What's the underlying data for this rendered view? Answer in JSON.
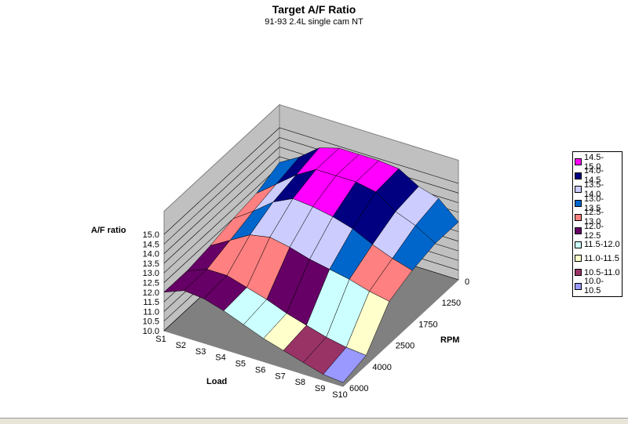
{
  "chart_data": {
    "type": "surface",
    "title": "Target A/F Ratio",
    "subtitle": "91-93 2.4L single cam NT",
    "zlabel": "A/F ratio",
    "xlabel": "Load",
    "ylabel": "RPM",
    "zlim": [
      10.0,
      15.0
    ],
    "z_ticks": [
      "10.0",
      "10.5",
      "11.0",
      "11.5",
      "12.0",
      "12.5",
      "13.0",
      "13.5",
      "14.0",
      "14.5",
      "15.0"
    ],
    "load_categories": [
      "S1",
      "S2",
      "S3",
      "S4",
      "S5",
      "S6",
      "S7",
      "S8",
      "S9",
      "S10"
    ],
    "rpm_ticks": [
      "0",
      "1250",
      "1750",
      "2500",
      "4000",
      "6000"
    ],
    "grid": true,
    "legend_position": "right",
    "legend": [
      {
        "label": "14.5-15.0",
        "color": "#ff00ff"
      },
      {
        "label": "14.0-14.5",
        "color": "#000080"
      },
      {
        "label": "13.5-14.0",
        "color": "#ccccff"
      },
      {
        "label": "13.0-13.5",
        "color": "#0066cc"
      },
      {
        "label": "12.5-13.0",
        "color": "#ff8080"
      },
      {
        "label": "12.0-12.5",
        "color": "#660066"
      },
      {
        "label": "11.5-12.0",
        "color": "#ccffff"
      },
      {
        "label": "11.0-11.5",
        "color": "#ffffcc"
      },
      {
        "label": "10.5-11.0",
        "color": "#993366"
      },
      {
        "label": "10.0-10.5",
        "color": "#9999ff"
      }
    ],
    "surface_z": [
      [
        13.2,
        13.8,
        14.6,
        14.9,
        14.9,
        14.9,
        14.8,
        14.2,
        13.9,
        13.0
      ],
      [
        12.7,
        13.5,
        14.3,
        14.9,
        14.9,
        14.9,
        14.7,
        14.0,
        13.6,
        13.0
      ],
      [
        12.5,
        13.2,
        14.0,
        14.5,
        14.4,
        14.2,
        13.9,
        13.4,
        13.0,
        12.7
      ],
      [
        12.2,
        12.8,
        13.4,
        13.6,
        13.4,
        13.1,
        12.9,
        12.7,
        12.4,
        12.2
      ],
      [
        12.0,
        12.4,
        12.4,
        12.1,
        11.8,
        11.4,
        11.1,
        10.8,
        10.6,
        10.5
      ],
      [
        12.0,
        12.4,
        12.3,
        12.0,
        11.6,
        11.2,
        10.9,
        10.6,
        10.3,
        10.2
      ]
    ]
  }
}
